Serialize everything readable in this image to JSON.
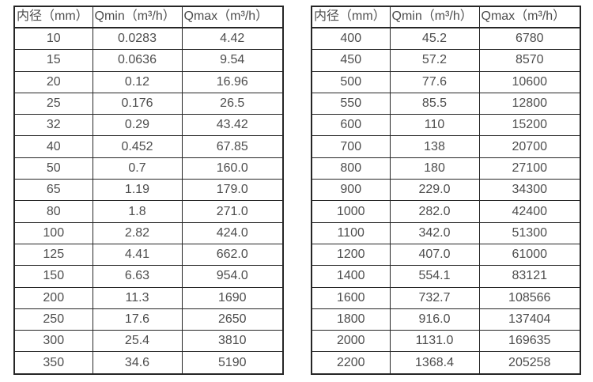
{
  "colors": {
    "background": "#ffffff",
    "border": "#262626",
    "text": "#4d4d4d"
  },
  "tables": [
    {
      "id": "flow-rate-table-small-diameters",
      "headers": [
        "内径（mm）",
        "Qmin（m³/h）",
        "Qmax（m³/h）"
      ],
      "rows": [
        [
          "10",
          "0.0283",
          "4.42"
        ],
        [
          "15",
          "0.0636",
          "9.54"
        ],
        [
          "20",
          "0.12",
          "16.96"
        ],
        [
          "25",
          "0.176",
          "26.5"
        ],
        [
          "32",
          "0.29",
          "43.42"
        ],
        [
          "40",
          "0.452",
          "67.85"
        ],
        [
          "50",
          "0.7",
          "160.0"
        ],
        [
          "65",
          "1.19",
          "179.0"
        ],
        [
          "80",
          "1.8",
          "271.0"
        ],
        [
          "100",
          "2.82",
          "424.0"
        ],
        [
          "125",
          "4.41",
          "662.0"
        ],
        [
          "150",
          "6.63",
          "954.0"
        ],
        [
          "200",
          "11.3",
          "1690"
        ],
        [
          "250",
          "17.6",
          "2650"
        ],
        [
          "300",
          "25.4",
          "3810"
        ],
        [
          "350",
          "34.6",
          "5190"
        ]
      ]
    },
    {
      "id": "flow-rate-table-large-diameters",
      "headers": [
        "内径（mm）",
        "Qmin（m³/h）",
        "Qmax（m³/h）"
      ],
      "rows": [
        [
          "400",
          "45.2",
          "6780"
        ],
        [
          "450",
          "57.2",
          "8570"
        ],
        [
          "500",
          "77.6",
          "10600"
        ],
        [
          "550",
          "85.5",
          "12800"
        ],
        [
          "600",
          "110",
          "15200"
        ],
        [
          "700",
          "138",
          "20700"
        ],
        [
          "800",
          "180",
          "27100"
        ],
        [
          "900",
          "229.0",
          "34300"
        ],
        [
          "1000",
          "282.0",
          "42400"
        ],
        [
          "1100",
          "342.0",
          "51300"
        ],
        [
          "1200",
          "407.0",
          "61000"
        ],
        [
          "1400",
          "554.1",
          "83121"
        ],
        [
          "1600",
          "732.7",
          "108566"
        ],
        [
          "1800",
          "916.0",
          "137404"
        ],
        [
          "2000",
          "1131.0",
          "169635"
        ],
        [
          "2200",
          "1368.4",
          "205258"
        ]
      ]
    }
  ]
}
